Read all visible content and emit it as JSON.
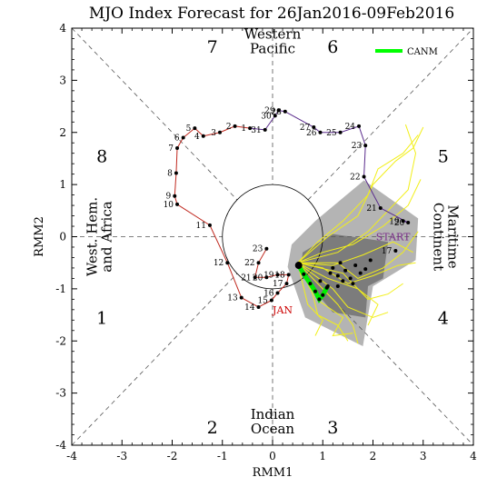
{
  "chart_data": {
    "type": "scatter",
    "title": "MJO Index Forecast for 26Jan2016-09Feb2016",
    "xlabel": "RMM1",
    "ylabel": "RMM2",
    "xlim": [
      -4,
      4
    ],
    "ylim": [
      -4,
      4
    ],
    "xticks": [
      "-4",
      "-3",
      "-2",
      "-1",
      "0",
      "1",
      "2",
      "3",
      "4"
    ],
    "yticks": [
      "-4",
      "-3",
      "-2",
      "-1",
      "0",
      "1",
      "2",
      "3",
      "4"
    ],
    "grid": false,
    "unit_circle_radius": 1,
    "phases": [
      {
        "label": "1",
        "x": -3.4,
        "y": -1.55
      },
      {
        "label": "2",
        "x": -1.2,
        "y": -3.65
      },
      {
        "label": "3",
        "x": 1.2,
        "y": -3.65
      },
      {
        "label": "4",
        "x": 3.4,
        "y": -1.55
      },
      {
        "label": "5",
        "x": 3.4,
        "y": 1.55
      },
      {
        "label": "6",
        "x": 1.2,
        "y": 3.65
      },
      {
        "label": "7",
        "x": -1.2,
        "y": 3.65
      },
      {
        "label": "8",
        "x": -3.4,
        "y": 1.55
      }
    ],
    "regions": [
      {
        "lines": [
          "Western",
          "Pacific"
        ],
        "x": 0,
        "y": 3.75,
        "rotate": 0
      },
      {
        "lines": [
          "Indian",
          "Ocean"
        ],
        "x": 0,
        "y": -3.55,
        "rotate": 0
      },
      {
        "lines": [
          "West. Hem.",
          "and Africa"
        ],
        "x": -3.45,
        "y": 0,
        "rotate": -90
      },
      {
        "lines": [
          "Maritime",
          "Continent"
        ],
        "x": 3.45,
        "y": 0,
        "rotate": 90
      }
    ],
    "month_labels": [
      {
        "text": "JAN",
        "x": 0.2,
        "y": -1.4,
        "color": "#cc0000"
      },
      {
        "text": "START",
        "x": 2.4,
        "y": 0.0,
        "color": "#7a2c8a"
      }
    ],
    "legend": {
      "entries": [
        "CANM"
      ],
      "position": "top-right",
      "color": "#00ff00"
    },
    "observed": [
      {
        "day": "1",
        "x": -0.45,
        "y": 2.08
      },
      {
        "day": "2",
        "x": -0.75,
        "y": 2.12
      },
      {
        "day": "3",
        "x": -1.05,
        "y": 2.0
      },
      {
        "day": "4",
        "x": -1.38,
        "y": 1.93
      },
      {
        "day": "5",
        "x": -1.55,
        "y": 2.08
      },
      {
        "day": "6",
        "x": -1.78,
        "y": 1.9
      },
      {
        "day": "7",
        "x": -1.9,
        "y": 1.7
      },
      {
        "day": "8",
        "x": -1.92,
        "y": 1.22
      },
      {
        "day": "9",
        "x": -1.95,
        "y": 0.78
      },
      {
        "day": "10",
        "x": -1.9,
        "y": 0.62
      },
      {
        "day": "11",
        "x": -1.25,
        "y": 0.22
      },
      {
        "day": "12",
        "x": -0.9,
        "y": -0.5
      },
      {
        "day": "13",
        "x": -0.62,
        "y": -1.17
      },
      {
        "day": "14",
        "x": -0.28,
        "y": -1.35
      },
      {
        "day": "15",
        "x": -0.02,
        "y": -1.22
      },
      {
        "day": "16",
        "x": 0.1,
        "y": -1.08
      },
      {
        "day": "17",
        "x": 0.28,
        "y": -0.9
      },
      {
        "day": "18",
        "x": 0.32,
        "y": -0.73
      },
      {
        "day": "19",
        "x": 0.1,
        "y": -0.73
      },
      {
        "day": "20",
        "x": -0.12,
        "y": -0.78
      },
      {
        "day": "21",
        "x": -0.35,
        "y": -0.78
      },
      {
        "day": "22",
        "x": -0.28,
        "y": -0.5
      },
      {
        "day": "23",
        "x": -0.12,
        "y": -0.23
      },
      {
        "day": "24",
        "x": 1.72,
        "y": 2.12
      },
      {
        "day": "25",
        "x": 1.35,
        "y": 2.0
      },
      {
        "day": "26",
        "x": 0.95,
        "y": 2.0
      },
      {
        "day": "27",
        "x": 0.82,
        "y": 2.1
      },
      {
        "day": "28",
        "x": 0.25,
        "y": 2.4
      },
      {
        "day": "29",
        "x": 0.12,
        "y": 2.42
      },
      {
        "day": "30",
        "x": 0.05,
        "y": 2.32
      },
      {
        "day": "31",
        "x": -0.15,
        "y": 2.05
      },
      {
        "day": "17",
        "x": 2.45,
        "y": -0.27
      },
      {
        "day": "19",
        "x": 2.6,
        "y": 0.3
      },
      {
        "day": "20",
        "x": 2.7,
        "y": 0.27
      },
      {
        "day": "21",
        "x": 2.15,
        "y": 0.55
      },
      {
        "day": "22",
        "x": 1.82,
        "y": 1.15
      },
      {
        "day": "23",
        "x": 1.85,
        "y": 1.75
      }
    ],
    "forecast_ensemble_mean": {
      "name": "CANM",
      "x": [
        0.52,
        0.62,
        0.75,
        0.85,
        0.93,
        1.0,
        1.08
      ],
      "y": [
        -0.55,
        -0.72,
        -0.9,
        -1.05,
        -1.2,
        -1.12,
        -0.98
      ]
    },
    "forecast_points": [
      {
        "x": 1.15,
        "y": -0.7
      },
      {
        "x": 1.2,
        "y": -0.6
      },
      {
        "x": 1.3,
        "y": -0.75
      },
      {
        "x": 1.4,
        "y": -0.85
      },
      {
        "x": 1.45,
        "y": -0.65
      },
      {
        "x": 1.55,
        "y": -0.8
      },
      {
        "x": 1.65,
        "y": -0.55
      },
      {
        "x": 1.75,
        "y": -0.7
      },
      {
        "x": 1.85,
        "y": -0.62
      },
      {
        "x": 1.6,
        "y": -0.9
      },
      {
        "x": 1.3,
        "y": -0.95
      },
      {
        "x": 1.1,
        "y": -0.95
      },
      {
        "x": 1.95,
        "y": -0.45
      },
      {
        "x": 0.95,
        "y": -0.85
      },
      {
        "x": 1.35,
        "y": -0.5
      }
    ],
    "spread_outer": [
      [
        0.38,
        -0.15
      ],
      [
        0.85,
        0.3
      ],
      [
        1.82,
        1.08
      ],
      [
        2.9,
        0.35
      ],
      [
        2.85,
        -0.45
      ],
      [
        2.0,
        -0.95
      ],
      [
        1.8,
        -2.1
      ],
      [
        0.65,
        -1.55
      ],
      [
        0.3,
        -0.58
      ]
    ],
    "spread_inner": [
      [
        0.6,
        -0.3
      ],
      [
        1.2,
        0.05
      ],
      [
        2.3,
        -0.1
      ],
      [
        2.2,
        -0.8
      ],
      [
        1.9,
        -0.95
      ],
      [
        1.85,
        -1.55
      ],
      [
        1.2,
        -1.45
      ],
      [
        0.55,
        -0.7
      ]
    ],
    "members": [
      [
        [
          0.5,
          -0.5
        ],
        [
          0.9,
          -0.1
        ],
        [
          1.4,
          0.3
        ],
        [
          1.9,
          0.8
        ],
        [
          2.1,
          1.3
        ],
        [
          2.6,
          1.6
        ],
        [
          2.9,
          1.95
        ]
      ],
      [
        [
          0.5,
          -0.5
        ],
        [
          1.0,
          -0.3
        ],
        [
          1.6,
          -0.15
        ],
        [
          2.2,
          0.2
        ],
        [
          2.7,
          0.6
        ],
        [
          2.95,
          1.1
        ]
      ],
      [
        [
          0.5,
          -0.5
        ],
        [
          1.2,
          -0.55
        ],
        [
          1.8,
          -0.35
        ],
        [
          2.4,
          -0.1
        ],
        [
          2.8,
          -0.3
        ]
      ],
      [
        [
          0.5,
          -0.5
        ],
        [
          0.9,
          -0.9
        ],
        [
          1.3,
          -1.3
        ],
        [
          1.6,
          -1.7
        ],
        [
          1.7,
          -2.05
        ]
      ],
      [
        [
          0.5,
          -0.5
        ],
        [
          1.1,
          -0.8
        ],
        [
          1.7,
          -1.0
        ],
        [
          2.1,
          -1.3
        ],
        [
          1.9,
          -1.7
        ]
      ],
      [
        [
          0.5,
          -0.5
        ],
        [
          0.8,
          -1.1
        ],
        [
          0.9,
          -1.5
        ],
        [
          1.3,
          -1.7
        ],
        [
          1.5,
          -2.0
        ]
      ],
      [
        [
          0.5,
          -0.5
        ],
        [
          1.3,
          -0.3
        ],
        [
          1.9,
          0.1
        ],
        [
          2.3,
          0.5
        ],
        [
          2.7,
          0.9
        ],
        [
          2.85,
          1.6
        ],
        [
          2.65,
          2.15
        ]
      ],
      [
        [
          0.5,
          -0.5
        ],
        [
          1.0,
          -0.6
        ],
        [
          1.5,
          -0.9
        ],
        [
          2.0,
          -0.75
        ],
        [
          2.5,
          -0.55
        ],
        [
          2.85,
          -0.5
        ]
      ],
      [
        [
          0.5,
          -0.5
        ],
        [
          0.7,
          -1.3
        ],
        [
          1.0,
          -1.6
        ],
        [
          0.85,
          -1.9
        ]
      ],
      [
        [
          0.5,
          -0.5
        ],
        [
          1.4,
          -0.7
        ],
        [
          1.9,
          -1.2
        ],
        [
          2.3,
          -1.1
        ],
        [
          2.6,
          -0.9
        ]
      ],
      [
        [
          0.5,
          -0.5
        ],
        [
          1.2,
          -1.0
        ],
        [
          1.5,
          -1.35
        ],
        [
          2.0,
          -1.55
        ],
        [
          2.3,
          -1.45
        ]
      ],
      [
        [
          0.5,
          -0.5
        ],
        [
          1.1,
          0.0
        ],
        [
          1.7,
          0.4
        ],
        [
          2.0,
          1.0
        ],
        [
          2.45,
          1.45
        ],
        [
          2.8,
          1.7
        ],
        [
          3.0,
          2.1
        ]
      ],
      [
        [
          0.5,
          -0.5
        ],
        [
          1.3,
          -0.5
        ],
        [
          1.7,
          -0.8
        ],
        [
          2.2,
          -0.6
        ],
        [
          2.6,
          -0.3
        ],
        [
          2.9,
          0.1
        ]
      ],
      [
        [
          0.5,
          -0.5
        ],
        [
          0.95,
          -1.25
        ],
        [
          1.4,
          -1.55
        ],
        [
          1.2,
          -1.9
        ],
        [
          1.6,
          -1.85
        ]
      ]
    ]
  }
}
